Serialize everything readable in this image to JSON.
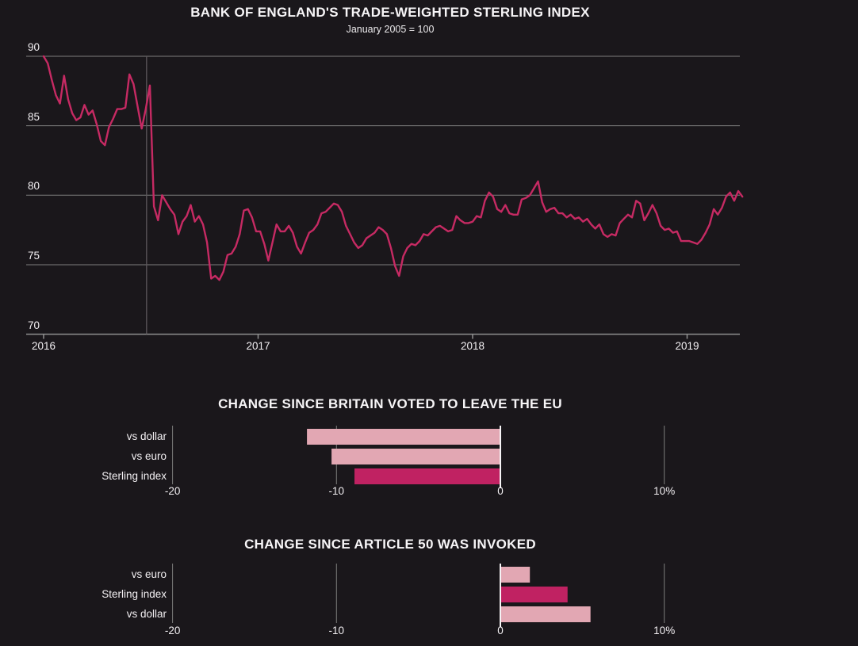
{
  "header": {
    "title": "BANK OF ENGLAND'S TRADE-WEIGHTED STERLING INDEX",
    "subtitle": "January 2005 = 100"
  },
  "colors": {
    "background": "#1a171b",
    "line": "#c62a63",
    "bar_dark": "#c02262",
    "bar_light": "#e2a7b3",
    "grid": "#7d7d7d",
    "axis": "#8f8f8f",
    "zero_line": "#f5f3f5",
    "reference_line": "#5d585c",
    "text": "#f2eff2"
  },
  "chart_data": [
    {
      "type": "line",
      "title": "BANK OF ENGLAND'S TRADE-WEIGHTED STERLING INDEX",
      "subtitle": "January 2005 = 100",
      "ylim": [
        70,
        90
      ],
      "yticks": [
        90,
        85,
        80,
        75,
        70
      ],
      "xticks": [
        2016,
        2017,
        2018,
        2019
      ],
      "grid": true,
      "reference_line_x": 2016.48,
      "x_start": 2016.0,
      "x_step_years": 0.01905,
      "values": [
        90.0,
        89.5,
        88.3,
        87.2,
        86.6,
        88.6,
        86.9,
        85.9,
        85.4,
        85.6,
        86.5,
        85.8,
        86.1,
        85.1,
        83.9,
        83.6,
        84.9,
        85.5,
        86.2,
        86.2,
        86.3,
        88.7,
        88.0,
        86.4,
        84.8,
        86.2,
        87.9,
        79.2,
        78.2,
        80.0,
        79.5,
        79.0,
        78.6,
        77.2,
        78.1,
        78.5,
        79.3,
        78.1,
        78.5,
        77.9,
        76.6,
        74.0,
        74.2,
        73.9,
        74.5,
        75.7,
        75.8,
        76.3,
        77.2,
        78.9,
        79.0,
        78.4,
        77.4,
        77.4,
        76.5,
        75.3,
        76.6,
        77.9,
        77.4,
        77.4,
        77.8,
        77.3,
        76.3,
        75.8,
        76.6,
        77.3,
        77.5,
        77.9,
        78.7,
        78.8,
        79.1,
        79.4,
        79.3,
        78.8,
        77.8,
        77.2,
        76.6,
        76.2,
        76.4,
        76.9,
        77.1,
        77.3,
        77.7,
        77.5,
        77.2,
        76.2,
        74.9,
        74.2,
        75.6,
        76.2,
        76.5,
        76.4,
        76.7,
        77.2,
        77.1,
        77.4,
        77.7,
        77.8,
        77.6,
        77.4,
        77.5,
        78.5,
        78.2,
        78.0,
        78.0,
        78.1,
        78.5,
        78.4,
        79.6,
        80.2,
        79.9,
        79.0,
        78.8,
        79.3,
        78.7,
        78.6,
        78.6,
        79.7,
        79.8,
        80.0,
        80.5,
        81.0,
        79.5,
        78.8,
        79.0,
        79.1,
        78.7,
        78.7,
        78.4,
        78.6,
        78.3,
        78.4,
        78.1,
        78.3,
        77.9,
        77.6,
        77.9,
        77.2,
        77.0,
        77.2,
        77.1,
        78.0,
        78.3,
        78.6,
        78.4,
        79.6,
        79.4,
        78.2,
        78.7,
        79.3,
        78.7,
        77.8,
        77.5,
        77.6,
        77.3,
        77.4,
        76.7,
        76.7,
        76.7,
        76.6,
        76.5,
        76.8,
        77.3,
        77.9,
        79.0,
        78.6,
        79.1,
        79.9,
        80.2,
        79.6,
        80.3,
        79.9
      ]
    },
    {
      "type": "bar",
      "title": "CHANGE SINCE BRITAIN VOTED TO LEAVE THE EU",
      "categories": [
        "vs dollar",
        "vs euro",
        "Sterling index"
      ],
      "values": [
        -11.8,
        -10.3,
        -8.9
      ],
      "bar_styles": [
        "light",
        "light",
        "dark"
      ],
      "xticks": [
        -20,
        -10,
        0,
        10
      ],
      "xtick_labels": [
        "-20",
        "-10",
        "0",
        "10%"
      ],
      "xlim": [
        -22,
        12
      ],
      "unit": "percent"
    },
    {
      "type": "bar",
      "title": "CHANGE SINCE ARTICLE 50 WAS INVOKED",
      "categories": [
        "vs euro",
        "Sterling index",
        "vs dollar"
      ],
      "values": [
        1.8,
        4.1,
        5.5
      ],
      "bar_styles": [
        "light",
        "dark",
        "light"
      ],
      "xticks": [
        -20,
        -10,
        0,
        10
      ],
      "xtick_labels": [
        "-20",
        "-10",
        "0",
        "10%"
      ],
      "xlim": [
        -22,
        12
      ],
      "unit": "percent"
    }
  ]
}
